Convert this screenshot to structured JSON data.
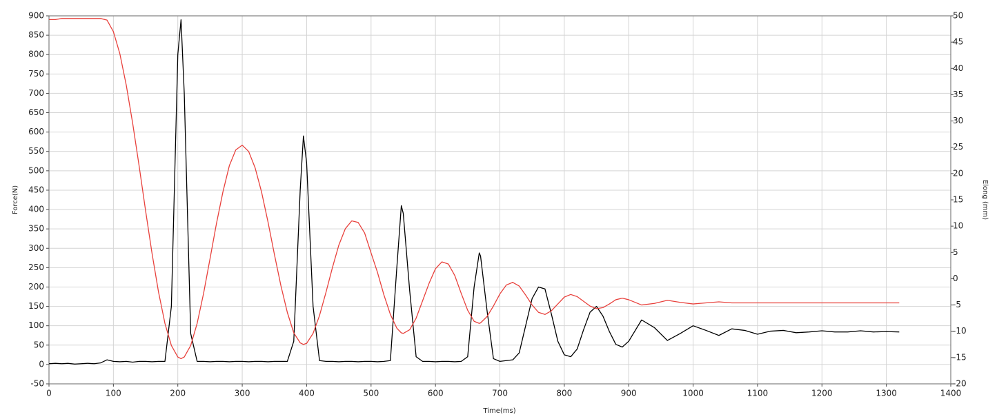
{
  "chart_data": {
    "type": "line",
    "x_label": "Time(ms)",
    "y_label": "Force(N)",
    "y2_label": "Elong (mm)",
    "x": [
      0,
      10,
      20,
      30,
      40,
      50,
      60,
      70,
      80,
      90,
      100,
      110,
      120,
      130,
      140,
      150,
      160,
      170,
      180,
      190,
      200,
      205,
      210,
      220,
      230,
      240,
      250,
      260,
      270,
      280,
      290,
      300,
      310,
      320,
      330,
      340,
      350,
      360,
      370,
      380,
      390,
      395,
      400,
      410,
      420,
      430,
      440,
      450,
      460,
      470,
      480,
      490,
      500,
      510,
      520,
      530,
      540,
      547,
      550,
      560,
      570,
      580,
      590,
      600,
      610,
      620,
      630,
      640,
      650,
      660,
      668,
      670,
      680,
      690,
      700,
      710,
      720,
      730,
      740,
      750,
      760,
      770,
      780,
      790,
      800,
      810,
      820,
      830,
      840,
      850,
      860,
      870,
      880,
      890,
      900,
      920,
      940,
      960,
      980,
      1000,
      1020,
      1040,
      1060,
      1080,
      1100,
      1120,
      1140,
      1160,
      1180,
      1200,
      1220,
      1240,
      1260,
      1280,
      1300,
      1320
    ],
    "series": [
      {
        "name": "Force(N)",
        "color": "#000000",
        "axis": "y",
        "values": [
          2,
          3,
          2,
          3,
          1,
          2,
          3,
          2,
          4,
          12,
          8,
          7,
          8,
          6,
          8,
          8,
          7,
          8,
          8,
          150,
          800,
          890,
          700,
          80,
          8,
          8,
          7,
          8,
          8,
          7,
          8,
          8,
          7,
          8,
          8,
          7,
          8,
          8,
          8,
          60,
          450,
          590,
          520,
          150,
          10,
          8,
          8,
          7,
          8,
          8,
          7,
          8,
          8,
          7,
          8,
          10,
          250,
          410,
          390,
          190,
          20,
          8,
          8,
          7,
          8,
          8,
          7,
          8,
          20,
          200,
          288,
          280,
          140,
          15,
          8,
          10,
          12,
          30,
          100,
          170,
          200,
          195,
          130,
          60,
          25,
          20,
          40,
          90,
          135,
          150,
          125,
          85,
          52,
          45,
          60,
          115,
          95,
          62,
          80,
          100,
          88,
          75,
          92,
          88,
          78,
          86,
          88,
          82,
          84,
          87,
          84,
          84,
          87,
          84,
          85,
          84
        ]
      },
      {
        "name": "Elong (mm)",
        "color": "#e8413c",
        "axis": "y2",
        "values": [
          49.3,
          49.3,
          49.5,
          49.5,
          49.5,
          49.5,
          49.5,
          49.5,
          49.5,
          49.2,
          47.0,
          42.8,
          36.8,
          29.5,
          21.4,
          12.9,
          4.8,
          -2.5,
          -8.5,
          -12.7,
          -14.9,
          -15.2,
          -14.9,
          -12.7,
          -8.5,
          -2.8,
          3.8,
          10.5,
          16.5,
          21.5,
          24.5,
          25.4,
          24.2,
          21.1,
          16.5,
          10.8,
          4.6,
          -1.3,
          -6.4,
          -10.3,
          -12.2,
          -12.5,
          -12.3,
          -10.4,
          -7.0,
          -2.6,
          2.1,
          6.4,
          9.5,
          11.0,
          10.7,
          8.7,
          4.9,
          1.2,
          -3.1,
          -6.8,
          -9.4,
          -10.3,
          -10.4,
          -9.7,
          -7.5,
          -4.2,
          -0.9,
          1.9,
          3.2,
          2.8,
          0.6,
          -2.8,
          -6.0,
          -8.1,
          -8.5,
          -8.4,
          -7.2,
          -5.2,
          -2.9,
          -1.2,
          -0.7,
          -1.4,
          -3.1,
          -5.0,
          -6.4,
          -6.8,
          -6.1,
          -4.8,
          -3.5,
          -3.0,
          -3.4,
          -4.3,
          -5.2,
          -5.7,
          -5.5,
          -4.8,
          -4.0,
          -3.7,
          -4.0,
          -5.0,
          -4.7,
          -4.1,
          -4.5,
          -4.8,
          -4.6,
          -4.4,
          -4.6,
          -4.6,
          -4.6,
          -4.6,
          -4.6,
          -4.6,
          -4.6,
          -4.6,
          -4.6,
          -4.6,
          -4.6,
          -4.6,
          -4.6,
          -4.6
        ]
      }
    ],
    "xlim": [
      0,
      1400
    ],
    "xticks": [
      0,
      100,
      200,
      300,
      400,
      500,
      600,
      700,
      800,
      900,
      1000,
      1100,
      1200,
      1300,
      1400
    ],
    "ylim": [
      -50,
      900
    ],
    "yticks": [
      -50,
      0,
      50,
      100,
      150,
      200,
      250,
      300,
      350,
      400,
      450,
      500,
      550,
      600,
      650,
      700,
      750,
      800,
      850,
      900
    ],
    "y2lim": [
      -20,
      50
    ],
    "y2ticks": [
      -20,
      -15,
      -10,
      -5,
      0,
      5,
      10,
      15,
      20,
      25,
      30,
      35,
      40,
      45,
      50
    ],
    "grid": true
  }
}
